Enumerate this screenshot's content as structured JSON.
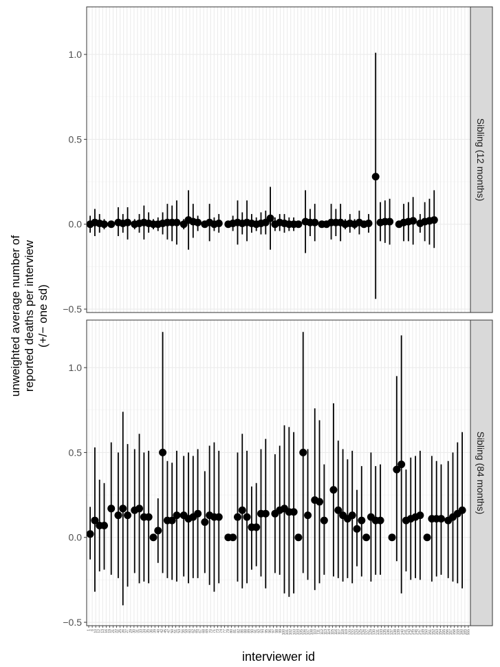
{
  "chart_data": {
    "type": "scatter",
    "xlabel": "interviewer id",
    "ylabel_lines": [
      "unweighted average number of",
      "reported deaths per interview",
      "(+/− one sd)"
    ],
    "ylim": [
      -0.52,
      1.28
    ],
    "yticks": [
      -0.5,
      0.0,
      0.5,
      1.0
    ],
    "ytick_labels": [
      "−0.5",
      "0.0",
      "0.5",
      "1.0"
    ],
    "grid": true,
    "error_bars": "mean ± one sd",
    "x_categories": 110,
    "x_tick_labels": [
      "1",
      "6",
      "10",
      "12",
      "13",
      "16",
      "19",
      "21",
      "22",
      "25",
      "26",
      "27",
      "29",
      "30",
      "31",
      "33",
      "34",
      "35",
      "36",
      "39",
      "40",
      "42",
      "45",
      "47",
      "50",
      "51",
      "53",
      "56",
      "59",
      "60",
      "62",
      "65",
      "67",
      "68",
      "69",
      "70",
      "71",
      "73",
      "74",
      "77",
      "79",
      "80",
      "81",
      "82",
      "86",
      "88",
      "89",
      "90",
      "91",
      "92",
      "94",
      "95",
      "96",
      "97",
      "98",
      "99",
      "100",
      "101",
      "102",
      "103",
      "104",
      "105",
      "106",
      "107",
      "108",
      "110",
      "111",
      "112",
      "113",
      "114",
      "115",
      "116",
      "117",
      "118",
      "119",
      "120",
      "122",
      "124",
      "125",
      "126",
      "127",
      "129",
      "130",
      "131",
      "133",
      "135",
      "136",
      "137",
      "138",
      "139",
      "140",
      "141",
      "143",
      "145",
      "146",
      "147",
      "149",
      "150",
      "151",
      "152",
      "153",
      "154",
      "155",
      "156",
      "157",
      "158",
      "159",
      "160",
      "165",
      "555"
    ],
    "panels": [
      {
        "strip": "Sibling (12 months)",
        "points": [
          {
            "x": 2,
            "y": 0.0,
            "lo": -0.05,
            "hi": 0.05
          },
          {
            "x": 4,
            "y": 0.01,
            "lo": -0.07,
            "hi": 0.09
          },
          {
            "x": 6,
            "y": 0.005,
            "lo": -0.05,
            "hi": 0.06
          },
          {
            "x": 8,
            "y": 0.0,
            "lo": -0.03,
            "hi": 0.03
          },
          {
            "x": 11,
            "y": 0.0,
            "lo": -0.02,
            "hi": 0.02
          },
          {
            "x": 14,
            "y": 0.01,
            "lo": -0.07,
            "hi": 0.1
          },
          {
            "x": 16,
            "y": 0.005,
            "lo": -0.05,
            "hi": 0.06
          },
          {
            "x": 18,
            "y": 0.01,
            "lo": -0.09,
            "hi": 0.1
          },
          {
            "x": 21,
            "y": 0.0,
            "lo": -0.03,
            "hi": 0.03
          },
          {
            "x": 23,
            "y": 0.005,
            "lo": -0.05,
            "hi": 0.06
          },
          {
            "x": 25,
            "y": 0.01,
            "lo": -0.09,
            "hi": 0.11
          },
          {
            "x": 27,
            "y": 0.005,
            "lo": -0.05,
            "hi": 0.07
          },
          {
            "x": 29,
            "y": 0.0,
            "lo": -0.03,
            "hi": 0.03
          },
          {
            "x": 31,
            "y": 0.0,
            "lo": -0.04,
            "hi": 0.04
          },
          {
            "x": 33,
            "y": 0.005,
            "lo": -0.06,
            "hi": 0.07
          },
          {
            "x": 35,
            "y": 0.01,
            "lo": -0.09,
            "hi": 0.12
          },
          {
            "x": 37,
            "y": 0.01,
            "lo": -0.1,
            "hi": 0.11
          },
          {
            "x": 39,
            "y": 0.01,
            "lo": -0.12,
            "hi": 0.14
          },
          {
            "x": 42,
            "y": 0.0,
            "lo": -0.03,
            "hi": 0.03
          },
          {
            "x": 44,
            "y": 0.025,
            "lo": -0.15,
            "hi": 0.2
          },
          {
            "x": 46,
            "y": 0.015,
            "lo": -0.08,
            "hi": 0.12
          },
          {
            "x": 48,
            "y": 0.01,
            "lo": -0.04,
            "hi": 0.05
          },
          {
            "x": 51,
            "y": 0.0,
            "lo": -0.02,
            "hi": 0.02
          },
          {
            "x": 53,
            "y": 0.01,
            "lo": -0.1,
            "hi": 0.12
          },
          {
            "x": 55,
            "y": 0.0,
            "lo": -0.04,
            "hi": 0.04
          },
          {
            "x": 57,
            "y": 0.005,
            "lo": -0.05,
            "hi": 0.06
          },
          {
            "x": 61,
            "y": 0.0,
            "lo": -0.02,
            "hi": 0.02
          },
          {
            "x": 63,
            "y": 0.005,
            "lo": -0.04,
            "hi": 0.05
          },
          {
            "x": 65,
            "y": 0.01,
            "lo": -0.12,
            "hi": 0.14
          },
          {
            "x": 67,
            "y": 0.005,
            "lo": -0.06,
            "hi": 0.07
          },
          {
            "x": 69,
            "y": 0.01,
            "lo": -0.1,
            "hi": 0.14
          },
          {
            "x": 71,
            "y": 0.005,
            "lo": -0.05,
            "hi": 0.06
          },
          {
            "x": 73,
            "y": 0.0,
            "lo": -0.04,
            "hi": 0.04
          },
          {
            "x": 75,
            "y": 0.005,
            "lo": -0.06,
            "hi": 0.07
          },
          {
            "x": 77,
            "y": 0.01,
            "lo": -0.06,
            "hi": 0.08
          },
          {
            "x": 79,
            "y": 0.035,
            "lo": -0.15,
            "hi": 0.22
          },
          {
            "x": 81,
            "y": 0.0,
            "lo": -0.04,
            "hi": 0.04
          },
          {
            "x": 83,
            "y": 0.01,
            "lo": -0.04,
            "hi": 0.06
          },
          {
            "x": 85,
            "y": 0.005,
            "lo": -0.05,
            "hi": 0.06
          },
          {
            "x": 87,
            "y": 0.0,
            "lo": -0.04,
            "hi": 0.04
          },
          {
            "x": 89,
            "y": 0.0,
            "lo": -0.04,
            "hi": 0.04
          },
          {
            "x": 91,
            "y": 0.0,
            "lo": -0.02,
            "hi": 0.02
          },
          {
            "x": 94,
            "y": 0.015,
            "lo": -0.17,
            "hi": 0.2
          },
          {
            "x": 96,
            "y": 0.01,
            "lo": -0.07,
            "hi": 0.09
          },
          {
            "x": 98,
            "y": 0.01,
            "lo": -0.1,
            "hi": 0.12
          },
          {
            "x": 101,
            "y": 0.0,
            "lo": -0.02,
            "hi": 0.02
          },
          {
            "x": 103,
            "y": 0.0,
            "lo": -0.02,
            "hi": 0.02
          },
          {
            "x": 105,
            "y": 0.01,
            "lo": -0.09,
            "hi": 0.12
          },
          {
            "x": 107,
            "y": 0.01,
            "lo": -0.07,
            "hi": 0.09
          },
          {
            "x": 109,
            "y": 0.01,
            "lo": -0.1,
            "hi": 0.12
          },
          {
            "x": 111,
            "y": 0.0,
            "lo": -0.03,
            "hi": 0.03
          },
          {
            "x": 113,
            "y": 0.005,
            "lo": -0.05,
            "hi": 0.06
          },
          {
            "x": 115,
            "y": 0.0,
            "lo": -0.03,
            "hi": 0.03
          },
          {
            "x": 117,
            "y": 0.01,
            "lo": -0.06,
            "hi": 0.08
          },
          {
            "x": 119,
            "y": 0.0,
            "lo": -0.02,
            "hi": 0.02
          },
          {
            "x": 121,
            "y": 0.005,
            "lo": -0.05,
            "hi": 0.06
          },
          {
            "x": 124,
            "y": 0.28,
            "lo": -0.44,
            "hi": 1.01
          },
          {
            "x": 126,
            "y": 0.01,
            "lo": -0.1,
            "hi": 0.13
          },
          {
            "x": 128,
            "y": 0.015,
            "lo": -0.11,
            "hi": 0.14
          },
          {
            "x": 130,
            "y": 0.015,
            "lo": -0.12,
            "hi": 0.15
          },
          {
            "x": 134,
            "y": 0.0,
            "lo": -0.02,
            "hi": 0.02
          },
          {
            "x": 136,
            "y": 0.01,
            "lo": -0.1,
            "hi": 0.12
          },
          {
            "x": 138,
            "y": 0.015,
            "lo": -0.1,
            "hi": 0.13
          },
          {
            "x": 140,
            "y": 0.02,
            "lo": -0.12,
            "hi": 0.16
          },
          {
            "x": 143,
            "y": 0.005,
            "lo": -0.05,
            "hi": 0.06
          },
          {
            "x": 145,
            "y": 0.015,
            "lo": -0.1,
            "hi": 0.13
          },
          {
            "x": 147,
            "y": 0.02,
            "lo": -0.12,
            "hi": 0.15
          },
          {
            "x": 149,
            "y": 0.025,
            "lo": -0.14,
            "hi": 0.2
          }
        ]
      },
      {
        "strip": "Sibling (84 months)",
        "points": [
          {
            "x": 2,
            "y": 0.02,
            "lo": -0.13,
            "hi": 0.18
          },
          {
            "x": 4,
            "y": 0.1,
            "lo": -0.32,
            "hi": 0.53
          },
          {
            "x": 6,
            "y": 0.07,
            "lo": -0.2,
            "hi": 0.34
          },
          {
            "x": 8,
            "y": 0.07,
            "lo": -0.19,
            "hi": 0.32
          },
          {
            "x": 11,
            "y": 0.17,
            "lo": -0.22,
            "hi": 0.56
          },
          {
            "x": 14,
            "y": 0.13,
            "lo": -0.24,
            "hi": 0.5
          },
          {
            "x": 16,
            "y": 0.17,
            "lo": -0.4,
            "hi": 0.74
          },
          {
            "x": 18,
            "y": 0.13,
            "lo": -0.29,
            "hi": 0.55
          },
          {
            "x": 21,
            "y": 0.16,
            "lo": -0.21,
            "hi": 0.52
          },
          {
            "x": 23,
            "y": 0.17,
            "lo": -0.27,
            "hi": 0.61
          },
          {
            "x": 25,
            "y": 0.12,
            "lo": -0.26,
            "hi": 0.5
          },
          {
            "x": 27,
            "y": 0.12,
            "lo": -0.27,
            "hi": 0.51
          },
          {
            "x": 29,
            "y": 0.0,
            "lo": -0.02,
            "hi": 0.02
          },
          {
            "x": 31,
            "y": 0.04,
            "lo": -0.15,
            "hi": 0.23
          },
          {
            "x": 33,
            "y": 0.5,
            "lo": -0.21,
            "hi": 1.21
          },
          {
            "x": 35,
            "y": 0.1,
            "lo": -0.24,
            "hi": 0.45
          },
          {
            "x": 37,
            "y": 0.1,
            "lo": -0.25,
            "hi": 0.44
          },
          {
            "x": 39,
            "y": 0.13,
            "lo": -0.26,
            "hi": 0.51
          },
          {
            "x": 42,
            "y": 0.13,
            "lo": -0.23,
            "hi": 0.48
          },
          {
            "x": 44,
            "y": 0.11,
            "lo": -0.27,
            "hi": 0.5
          },
          {
            "x": 46,
            "y": 0.12,
            "lo": -0.24,
            "hi": 0.48
          },
          {
            "x": 48,
            "y": 0.14,
            "lo": -0.24,
            "hi": 0.52
          },
          {
            "x": 51,
            "y": 0.09,
            "lo": -0.21,
            "hi": 0.39
          },
          {
            "x": 53,
            "y": 0.13,
            "lo": -0.28,
            "hi": 0.54
          },
          {
            "x": 55,
            "y": 0.12,
            "lo": -0.32,
            "hi": 0.56
          },
          {
            "x": 57,
            "y": 0.12,
            "lo": -0.27,
            "hi": 0.51
          },
          {
            "x": 61,
            "y": 0.0,
            "lo": -0.02,
            "hi": 0.02
          },
          {
            "x": 63,
            "y": 0.0,
            "lo": -0.02,
            "hi": 0.02
          },
          {
            "x": 65,
            "y": 0.12,
            "lo": -0.26,
            "hi": 0.5
          },
          {
            "x": 67,
            "y": 0.16,
            "lo": -0.3,
            "hi": 0.61
          },
          {
            "x": 69,
            "y": 0.12,
            "lo": -0.27,
            "hi": 0.51
          },
          {
            "x": 71,
            "y": 0.06,
            "lo": -0.19,
            "hi": 0.3
          },
          {
            "x": 73,
            "y": 0.06,
            "lo": -0.17,
            "hi": 0.32
          },
          {
            "x": 75,
            "y": 0.14,
            "lo": -0.23,
            "hi": 0.52
          },
          {
            "x": 77,
            "y": 0.14,
            "lo": -0.3,
            "hi": 0.58
          },
          {
            "x": 81,
            "y": 0.14,
            "lo": -0.21,
            "hi": 0.49
          },
          {
            "x": 83,
            "y": 0.16,
            "lo": -0.22,
            "hi": 0.54
          },
          {
            "x": 85,
            "y": 0.17,
            "lo": -0.33,
            "hi": 0.66
          },
          {
            "x": 87,
            "y": 0.15,
            "lo": -0.35,
            "hi": 0.65
          },
          {
            "x": 89,
            "y": 0.15,
            "lo": -0.33,
            "hi": 0.62
          },
          {
            "x": 91,
            "y": 0.0,
            "lo": -0.02,
            "hi": 0.02
          },
          {
            "x": 93,
            "y": 0.5,
            "lo": -0.21,
            "hi": 1.21
          },
          {
            "x": 95,
            "y": 0.13,
            "lo": -0.25,
            "hi": 0.52
          },
          {
            "x": 98,
            "y": 0.22,
            "lo": -0.31,
            "hi": 0.76
          },
          {
            "x": 100,
            "y": 0.21,
            "lo": -0.27,
            "hi": 0.69
          },
          {
            "x": 102,
            "y": 0.1,
            "lo": -0.22,
            "hi": 0.43
          },
          {
            "x": 106,
            "y": 0.28,
            "lo": -0.23,
            "hi": 0.79
          },
          {
            "x": 108,
            "y": 0.16,
            "lo": -0.24,
            "hi": 0.57
          },
          {
            "x": 110,
            "y": 0.13,
            "lo": -0.26,
            "hi": 0.52
          },
          {
            "x": 112,
            "y": 0.11,
            "lo": -0.24,
            "hi": 0.46
          },
          {
            "x": 114,
            "y": 0.13,
            "lo": -0.27,
            "hi": 0.51
          },
          {
            "x": 116,
            "y": 0.05,
            "lo": -0.17,
            "hi": 0.28
          },
          {
            "x": 118,
            "y": 0.1,
            "lo": -0.23,
            "hi": 0.42
          },
          {
            "x": 120,
            "y": 0.0,
            "lo": -0.02,
            "hi": 0.02
          },
          {
            "x": 122,
            "y": 0.12,
            "lo": -0.26,
            "hi": 0.5
          },
          {
            "x": 124,
            "y": 0.1,
            "lo": -0.22,
            "hi": 0.42
          },
          {
            "x": 126,
            "y": 0.1,
            "lo": -0.22,
            "hi": 0.43
          },
          {
            "x": 131,
            "y": 0.0,
            "lo": -0.02,
            "hi": 0.02
          },
          {
            "x": 133,
            "y": 0.4,
            "lo": -0.14,
            "hi": 0.95
          },
          {
            "x": 135,
            "y": 0.43,
            "lo": -0.33,
            "hi": 1.19
          },
          {
            "x": 137,
            "y": 0.1,
            "lo": -0.2,
            "hi": 0.4
          },
          {
            "x": 139,
            "y": 0.11,
            "lo": -0.25,
            "hi": 0.47
          },
          {
            "x": 141,
            "y": 0.12,
            "lo": -0.24,
            "hi": 0.48
          },
          {
            "x": 143,
            "y": 0.13,
            "lo": -0.25,
            "hi": 0.51
          },
          {
            "x": 146,
            "y": 0.0,
            "lo": -0.02,
            "hi": 0.02
          },
          {
            "x": 148,
            "y": 0.11,
            "lo": -0.26,
            "hi": 0.48
          },
          {
            "x": 150,
            "y": 0.11,
            "lo": -0.23,
            "hi": 0.45
          },
          {
            "x": 152,
            "y": 0.11,
            "lo": -0.22,
            "hi": 0.43
          },
          {
            "x": 155,
            "y": 0.1,
            "lo": -0.24,
            "hi": 0.45
          },
          {
            "x": 157,
            "y": 0.12,
            "lo": -0.26,
            "hi": 0.5
          },
          {
            "x": 159,
            "y": 0.14,
            "lo": -0.27,
            "hi": 0.56
          },
          {
            "x": 161,
            "y": 0.16,
            "lo": -0.3,
            "hi": 0.62
          }
        ]
      }
    ]
  },
  "colors": {
    "panel_bg": "#ffffff",
    "grid": "#ebebeb",
    "border": "#333333",
    "strip_bg": "#d9d9d9",
    "marks": "#000000",
    "text": "#4d4d4d",
    "title_text": "#000000"
  }
}
